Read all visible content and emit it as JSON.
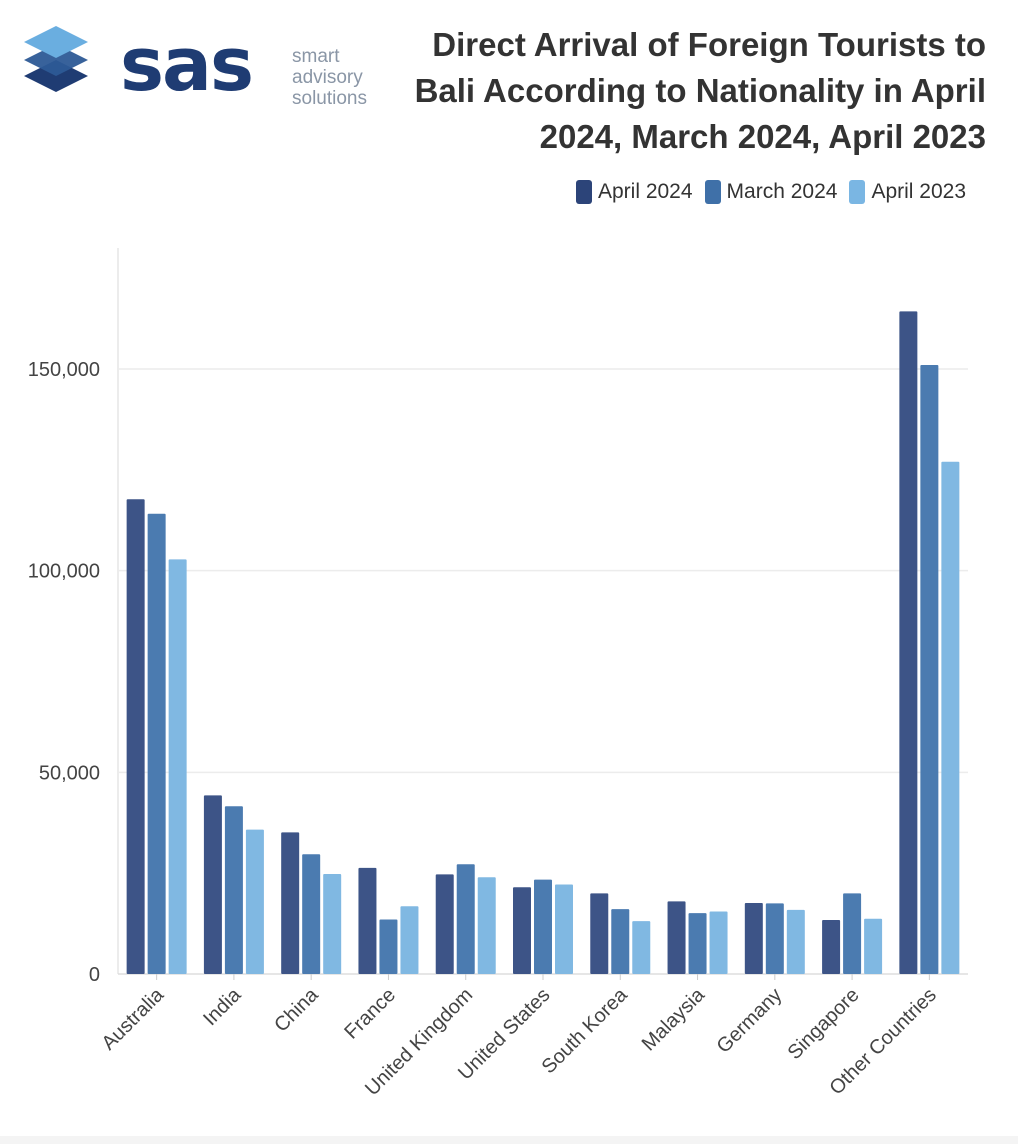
{
  "logo": {
    "brand": "sas",
    "line1": "smart",
    "line2": "advisory",
    "line3": "solutions",
    "colors": {
      "dark": "#1f3c73",
      "mid": "#2d5a96",
      "light": "#6aaee0"
    }
  },
  "chart_data": {
    "type": "bar",
    "title": "Direct Arrival of Foreign Tourists to Bali According to Nationality in April 2024, March 2024, April 2023",
    "xlabel": "",
    "ylabel": "",
    "ylim": [
      0,
      180000
    ],
    "yticks": [
      0,
      50000,
      100000,
      150000
    ],
    "ytick_labels": [
      "0",
      "50,000",
      "100,000",
      "150,000"
    ],
    "categories": [
      "Australia",
      "India",
      "China",
      "France",
      "United Kingdom",
      "United States",
      "South Korea",
      "Malaysia",
      "Germany",
      "Singapore",
      "Other Countries"
    ],
    "series": [
      {
        "name": "April 2024",
        "color": "#3d5487",
        "values": [
          117700,
          44300,
          35100,
          26300,
          24700,
          21500,
          20000,
          18000,
          17600,
          13400,
          164300
        ]
      },
      {
        "name": "March 2024",
        "color": "#4b7bb0",
        "values": [
          114100,
          41600,
          29700,
          13500,
          27200,
          23400,
          16100,
          15100,
          17500,
          20000,
          151000
        ]
      },
      {
        "name": "April 2023",
        "color": "#80b8e2",
        "values": [
          102800,
          35800,
          24800,
          16800,
          24000,
          22200,
          13100,
          15500,
          15900,
          13700,
          127000
        ]
      }
    ],
    "legend_position": "top-right",
    "grid": true
  }
}
